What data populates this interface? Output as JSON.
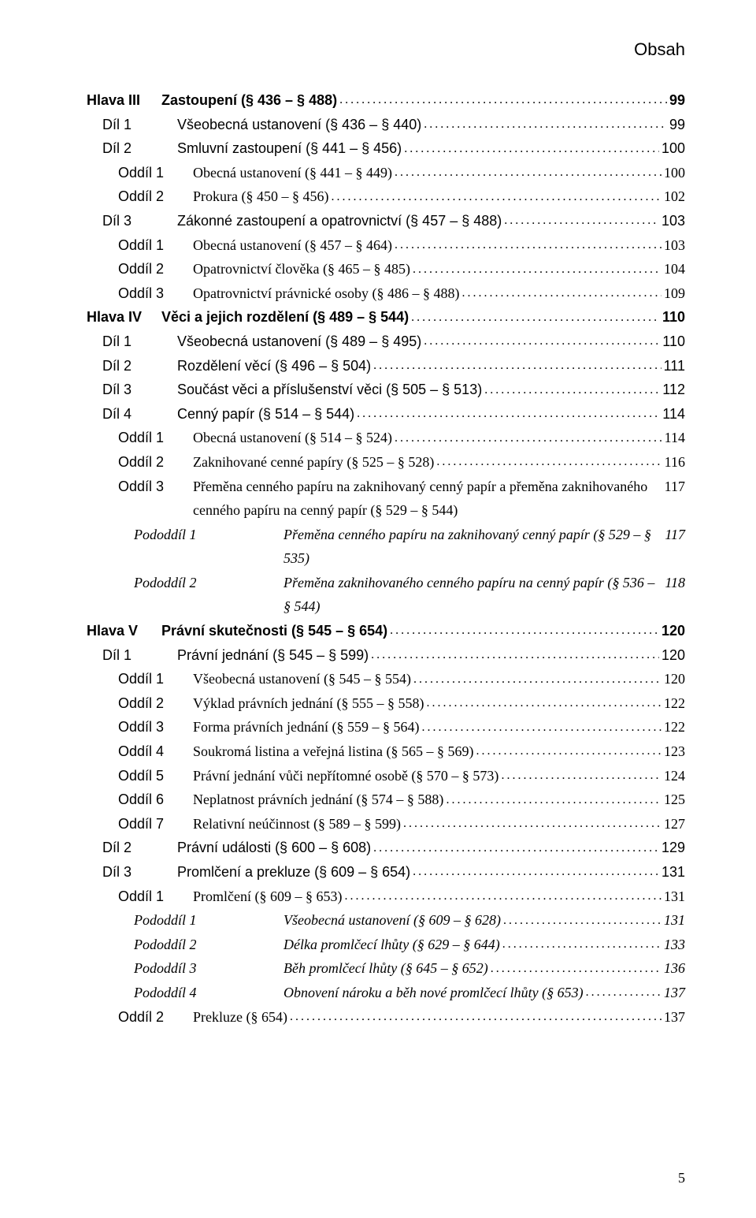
{
  "header": "Obsah",
  "page_number": "5",
  "colors": {
    "text": "#000000",
    "background": "#ffffff"
  },
  "typography": {
    "serif": "Georgia",
    "sans": "Helvetica Neue",
    "base_size_pt": 18,
    "line_height": 1.7
  },
  "entries": [
    {
      "level": 0,
      "label": "Hlava III",
      "title": "Zastoupení (§ 436 – § 488)",
      "page": "99",
      "bold": true,
      "sans": true
    },
    {
      "level": 1,
      "label": "Díl 1",
      "title": "Všeobecná ustanovení (§ 436 – § 440)",
      "page": "99",
      "sans": true
    },
    {
      "level": 1,
      "label": "Díl 2",
      "title": "Smluvní zastoupení (§ 441 – § 456)",
      "page": "100",
      "sans": true
    },
    {
      "level": 2,
      "label": "Oddíl 1",
      "title": "Obecná ustanovení (§ 441 – § 449)",
      "page": "100"
    },
    {
      "level": 2,
      "label": "Oddíl 2",
      "title": "Prokura (§ 450 – § 456)",
      "page": "102"
    },
    {
      "level": 1,
      "label": "Díl 3",
      "title": "Zákonné zastoupení a opatrovnictví (§ 457 – § 488)",
      "page": "103",
      "sans": true
    },
    {
      "level": 2,
      "label": "Oddíl 1",
      "title": "Obecná ustanovení (§ 457 – § 464)",
      "page": "103"
    },
    {
      "level": 2,
      "label": "Oddíl 2",
      "title": "Opatrovnictví člověka (§ 465 – § 485)",
      "page": "104"
    },
    {
      "level": 2,
      "label": "Oddíl 3",
      "title": "Opatrovnictví právnické osoby (§ 486 – § 488)",
      "page": "109"
    },
    {
      "level": 0,
      "label": "Hlava IV",
      "title": "Věci a jejich rozdělení (§ 489 – § 544)",
      "page": "110",
      "bold": true,
      "sans": true
    },
    {
      "level": 1,
      "label": "Díl 1",
      "title": "Všeobecná ustanovení (§ 489 – § 495)",
      "page": "110",
      "sans": true
    },
    {
      "level": 1,
      "label": "Díl 2",
      "title": "Rozdělení věcí (§ 496 – § 504)",
      "page": "111",
      "sans": true
    },
    {
      "level": 1,
      "label": "Díl 3",
      "title": "Součást věci a příslušenství věci (§ 505 – § 513)",
      "page": "112",
      "sans": true
    },
    {
      "level": 1,
      "label": "Díl 4",
      "title": "Cenný papír (§ 514 – § 544)",
      "page": "114",
      "sans": true
    },
    {
      "level": 2,
      "label": "Oddíl 1",
      "title": "Obecná ustanovení (§ 514 – § 524)",
      "page": "114"
    },
    {
      "level": 2,
      "label": "Oddíl 2",
      "title": "Zaknihované cenné papíry (§ 525 – § 528)",
      "page": "116"
    },
    {
      "level": 2,
      "label": "Oddíl 3",
      "title": "Přeměna cenného papíru na zaknihovaný cenný papír a přeměna zaknihovaného cenného papíru na cenný papír (§ 529 – § 544)",
      "page": "117",
      "wrap": true
    },
    {
      "level": 3,
      "label": "Pododdíl 1",
      "title": "Přeměna cenného papíru na zaknihovaný cenný papír (§ 529 – § 535)",
      "page": "117",
      "italic": true,
      "pod": true,
      "wrap": true
    },
    {
      "level": 3,
      "label": "Pododdíl 2",
      "title": "Přeměna zaknihovaného cenného papíru na cenný papír (§ 536 – § 544)",
      "page": "118",
      "italic": true,
      "pod": true,
      "wrap": true
    },
    {
      "level": 0,
      "label": "Hlava V",
      "title": "Právní skutečnosti (§ 545 – § 654)",
      "page": "120",
      "bold": true,
      "sans": true
    },
    {
      "level": 1,
      "label": "Díl 1",
      "title": "Právní jednání (§ 545 – § 599)",
      "page": "120",
      "sans": true
    },
    {
      "level": 2,
      "label": "Oddíl 1",
      "title": "Všeobecná ustanovení (§ 545 – § 554)",
      "page": "120"
    },
    {
      "level": 2,
      "label": "Oddíl 2",
      "title": "Výklad právních jednání (§ 555 – § 558)",
      "page": "122"
    },
    {
      "level": 2,
      "label": "Oddíl 3",
      "title": "Forma právních jednání (§ 559 – § 564)",
      "page": "122"
    },
    {
      "level": 2,
      "label": "Oddíl 4",
      "title": "Soukromá listina a veřejná listina (§ 565 – § 569)",
      "page": "123"
    },
    {
      "level": 2,
      "label": "Oddíl 5",
      "title": "Právní jednání vůči nepřítomné osobě (§ 570 – § 573)",
      "page": "124"
    },
    {
      "level": 2,
      "label": "Oddíl 6",
      "title": "Neplatnost právních jednání (§ 574 – § 588)",
      "page": "125"
    },
    {
      "level": 2,
      "label": "Oddíl 7",
      "title": "Relativní neúčinnost (§ 589 – § 599)",
      "page": "127"
    },
    {
      "level": 1,
      "label": "Díl 2",
      "title": "Právní události (§ 600 – § 608)",
      "page": "129",
      "sans": true
    },
    {
      "level": 1,
      "label": "Díl 3",
      "title": "Promlčení a prekluze (§ 609 – § 654)",
      "page": "131",
      "sans": true
    },
    {
      "level": 2,
      "label": "Oddíl 1",
      "title": "Promlčení (§ 609 – § 653)",
      "page": "131"
    },
    {
      "level": 3,
      "label": "Pododdíl 1",
      "title": "Všeobecná ustanovení (§ 609 – § 628)",
      "page": "131",
      "italic": true,
      "pod": true
    },
    {
      "level": 3,
      "label": "Pododdíl 2",
      "title": "Délka promlčecí lhůty (§ 629 – § 644)",
      "page": "133",
      "italic": true,
      "pod": true
    },
    {
      "level": 3,
      "label": "Pododdíl 3",
      "title": "Běh promlčecí lhůty (§ 645 – § 652)",
      "page": "136",
      "italic": true,
      "pod": true
    },
    {
      "level": 3,
      "label": "Pododdíl 4",
      "title": "Obnovení nároku a běh nové promlčecí lhůty (§ 653)",
      "page": "137",
      "italic": true,
      "pod": true
    },
    {
      "level": 2,
      "label": "Oddíl 2",
      "title": "Prekluze (§ 654)",
      "page": "137"
    }
  ]
}
